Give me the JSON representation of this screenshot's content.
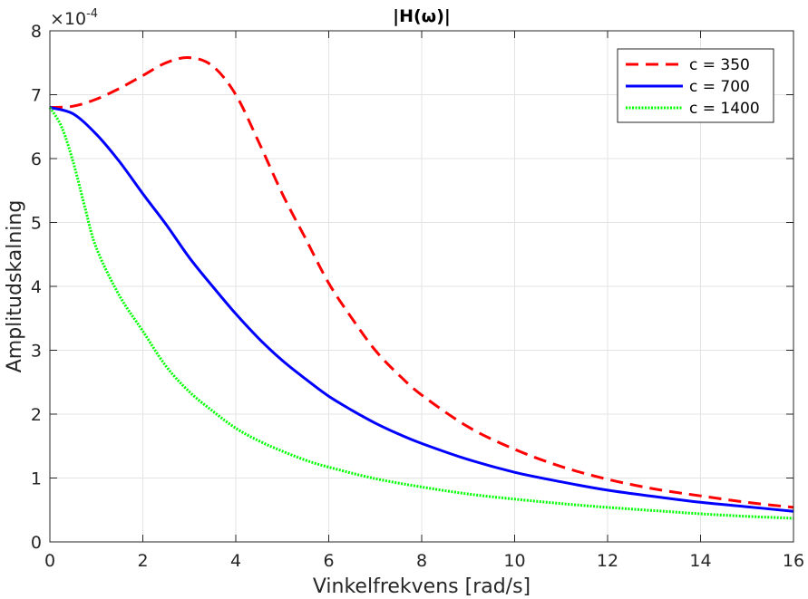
{
  "chart_data": {
    "type": "line",
    "title": "|H(ω)|",
    "xlabel": "Vinkelfrekvens [rad/s]",
    "ylabel": "Amplitudskalning",
    "y_exponent": "-4",
    "y_multiplier_label": "×10",
    "xlim": [
      0,
      16
    ],
    "ylim": [
      0,
      8
    ],
    "xticks": [
      0,
      2,
      4,
      6,
      8,
      10,
      12,
      14,
      16
    ],
    "yticks": [
      0,
      1,
      2,
      3,
      4,
      5,
      6,
      7,
      8
    ],
    "grid": true,
    "legend_position": "top-right",
    "series": [
      {
        "name": "c = 350",
        "color": "#ff0000",
        "style": "dashed",
        "x": [
          0,
          0.5,
          1,
          1.5,
          2,
          2.5,
          3,
          3.5,
          4,
          4.5,
          5,
          5.5,
          6,
          6.5,
          7,
          7.5,
          8,
          9,
          10,
          11,
          12,
          13,
          14,
          15,
          16
        ],
        "y": [
          6.8,
          6.82,
          6.93,
          7.1,
          7.3,
          7.5,
          7.58,
          7.45,
          7.0,
          6.25,
          5.45,
          4.75,
          4.05,
          3.5,
          3.0,
          2.62,
          2.3,
          1.8,
          1.45,
          1.18,
          0.98,
          0.83,
          0.72,
          0.62,
          0.54
        ]
      },
      {
        "name": "c = 700",
        "color": "#0000ff",
        "style": "solid",
        "x": [
          0,
          0.5,
          1,
          1.5,
          2,
          2.5,
          3,
          3.5,
          4,
          4.5,
          5,
          5.5,
          6,
          6.5,
          7,
          7.5,
          8,
          9,
          10,
          11,
          12,
          13,
          14,
          15,
          16
        ],
        "y": [
          6.8,
          6.7,
          6.38,
          5.95,
          5.45,
          4.97,
          4.45,
          4.0,
          3.57,
          3.18,
          2.84,
          2.55,
          2.28,
          2.06,
          1.86,
          1.69,
          1.54,
          1.29,
          1.09,
          0.94,
          0.81,
          0.71,
          0.62,
          0.55,
          0.48
        ]
      },
      {
        "name": "c = 1400",
        "color": "#00ff00",
        "style": "dotted",
        "x": [
          0,
          0.25,
          0.5,
          0.75,
          1,
          1.5,
          2,
          2.5,
          3,
          3.5,
          4,
          4.5,
          5,
          5.5,
          6,
          7,
          8,
          9,
          10,
          11,
          12,
          13,
          14,
          15,
          16
        ],
        "y": [
          6.8,
          6.5,
          5.95,
          5.25,
          4.6,
          3.85,
          3.3,
          2.75,
          2.35,
          2.05,
          1.78,
          1.58,
          1.42,
          1.28,
          1.17,
          0.99,
          0.86,
          0.75,
          0.67,
          0.6,
          0.54,
          0.49,
          0.44,
          0.4,
          0.37
        ]
      }
    ]
  }
}
